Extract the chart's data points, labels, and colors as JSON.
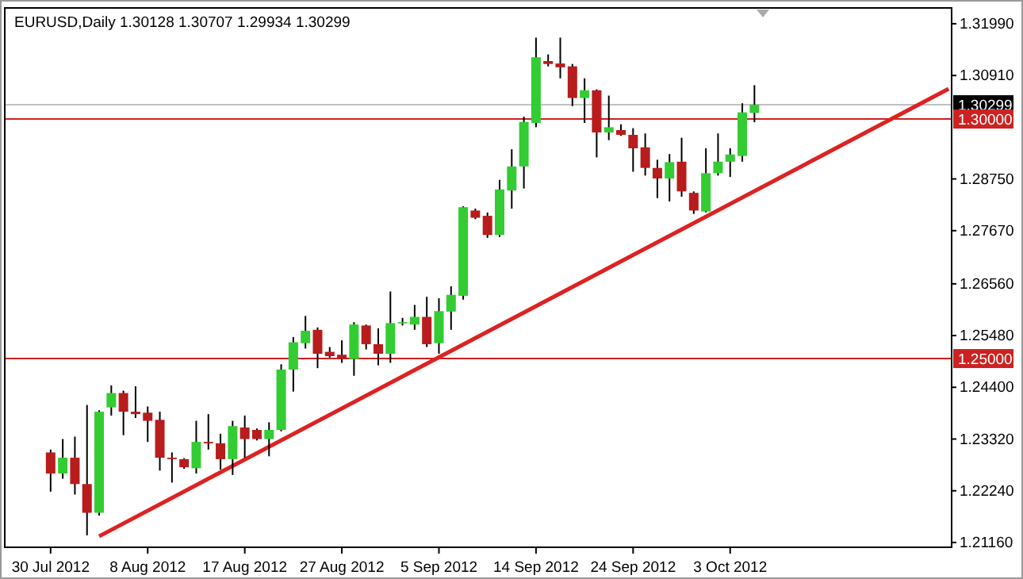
{
  "chart_data": {
    "type": "candlestick",
    "title": "EURUSD,Daily  1.30128 1.30707 1.29934 1.30299",
    "categories": [
      "30 Jul 2012",
      null,
      null,
      null,
      null,
      null,
      null,
      null,
      "8 Aug 2012",
      null,
      null,
      null,
      null,
      null,
      null,
      null,
      "17 Aug 2012",
      null,
      null,
      null,
      null,
      null,
      null,
      null,
      "27 Aug 2012",
      null,
      null,
      null,
      null,
      null,
      null,
      null,
      "5 Sep 2012",
      null,
      null,
      null,
      null,
      null,
      null,
      null,
      "14 Sep 2012",
      null,
      null,
      null,
      null,
      null,
      null,
      null,
      "24 Sep 2012",
      null,
      null,
      null,
      null,
      null,
      null,
      null,
      "3 Oct 2012",
      null,
      null,
      null,
      null,
      null,
      null,
      null,
      null,
      null,
      null,
      null,
      null,
      null,
      null,
      null,
      null,
      null,
      null
    ],
    "ohlc": [
      [
        1.2304,
        1.231,
        1.2222,
        1.226
      ],
      [
        1.226,
        1.2332,
        1.2249,
        1.2293
      ],
      [
        1.2293,
        1.2337,
        1.2216,
        1.2238
      ],
      [
        1.2238,
        1.2403,
        1.2131,
        1.2178
      ],
      [
        1.2178,
        1.2392,
        1.2172,
        1.2389
      ],
      [
        1.2398,
        1.2444,
        1.2381,
        1.2428
      ],
      [
        1.2428,
        1.2433,
        1.234,
        1.2389
      ],
      [
        1.2389,
        1.2442,
        1.2376,
        1.2384
      ],
      [
        1.2387,
        1.24,
        1.2326,
        1.237
      ],
      [
        1.2372,
        1.2389,
        1.2266,
        1.2293
      ],
      [
        1.2293,
        1.2304,
        1.2241,
        1.229
      ],
      [
        1.229,
        1.2292,
        1.227,
        1.2273
      ],
      [
        1.2271,
        1.237,
        1.226,
        1.2326
      ],
      [
        1.2326,
        1.2384,
        1.231,
        1.2323
      ],
      [
        1.2323,
        1.2343,
        1.2268,
        1.229
      ],
      [
        1.229,
        1.237,
        1.2257,
        1.2359
      ],
      [
        1.2356,
        1.2381,
        1.2293,
        1.2332
      ],
      [
        1.2351,
        1.2354,
        1.2329,
        1.2332
      ],
      [
        1.2332,
        1.2367,
        1.2296,
        1.2351
      ],
      [
        1.2351,
        1.2488,
        1.2348,
        1.2477
      ],
      [
        1.2477,
        1.2545,
        1.2431,
        1.2534
      ],
      [
        1.2532,
        1.2589,
        1.2521,
        1.2558
      ],
      [
        1.256,
        1.2565,
        1.248,
        1.251
      ],
      [
        1.2514,
        1.2524,
        1.2502,
        1.2505
      ],
      [
        1.2508,
        1.2538,
        1.2491,
        1.2499
      ],
      [
        1.2499,
        1.2576,
        1.2464,
        1.2571
      ],
      [
        1.2569,
        1.2571,
        1.2519,
        1.253
      ],
      [
        1.253,
        1.2563,
        1.2486,
        1.251
      ],
      [
        1.251,
        1.264,
        1.2491,
        1.2574
      ],
      [
        1.2574,
        1.2585,
        1.2569,
        1.2576
      ],
      [
        1.2571,
        1.2612,
        1.256,
        1.2587
      ],
      [
        1.2587,
        1.2629,
        1.2524,
        1.253
      ],
      [
        1.2532,
        1.2626,
        1.251,
        1.2599
      ],
      [
        1.2598,
        1.2651,
        1.256,
        1.2633
      ],
      [
        1.2631,
        1.2818,
        1.2623,
        1.2816
      ],
      [
        1.2809,
        1.2813,
        1.2791,
        1.2794
      ],
      [
        1.2798,
        1.2805,
        1.2752,
        1.2758
      ],
      [
        1.2758,
        1.2873,
        1.2754,
        1.2853
      ],
      [
        1.2851,
        1.2937,
        1.2813,
        1.2901
      ],
      [
        1.2901,
        1.3005,
        1.2855,
        1.2994
      ],
      [
        1.2992,
        1.317,
        1.2983,
        1.3129
      ],
      [
        1.3121,
        1.3135,
        1.311,
        1.3115
      ],
      [
        1.3116,
        1.317,
        1.3085,
        1.3108
      ],
      [
        1.311,
        1.3115,
        1.3027,
        1.3044
      ],
      [
        1.3044,
        1.3085,
        1.2992,
        1.306
      ],
      [
        1.306,
        1.3062,
        1.292,
        1.2972
      ],
      [
        1.2972,
        1.3049,
        1.2956,
        1.2983
      ],
      [
        1.2977,
        1.2989,
        1.2965,
        1.2967
      ],
      [
        1.2967,
        1.2981,
        1.289,
        1.2939
      ],
      [
        1.2941,
        1.297,
        1.2882,
        1.2898
      ],
      [
        1.2898,
        1.2915,
        1.2835,
        1.2876
      ],
      [
        1.2876,
        1.2927,
        1.2828,
        1.291
      ],
      [
        1.2911,
        1.2961,
        1.2838,
        1.2849
      ],
      [
        1.2846,
        1.2849,
        1.2802,
        1.2809
      ],
      [
        1.2807,
        1.2939,
        1.2805,
        1.2887
      ],
      [
        1.2887,
        1.297,
        1.2882,
        1.2911
      ],
      [
        1.2911,
        1.2939,
        1.2879,
        1.2926
      ],
      [
        1.2923,
        1.3033,
        1.2911,
        1.3014
      ],
      [
        1.30128,
        1.30707,
        1.29934,
        1.30299
      ],
      null,
      null,
      null,
      null,
      null,
      null,
      null,
      null,
      null,
      null,
      null,
      null,
      null,
      null,
      null,
      null
    ],
    "colors": [
      "#b81c1c",
      "#33cc33",
      "#b81c1c",
      "#b81c1c",
      "#33cc33",
      "#33cc33",
      "#b81c1c",
      "#b81c1c",
      "#b81c1c",
      "#b81c1c",
      "#b81c1c",
      "#b81c1c",
      "#33cc33",
      "#b81c1c",
      "#b81c1c",
      "#33cc33",
      "#b81c1c",
      "#b81c1c",
      "#33cc33",
      "#33cc33",
      "#33cc33",
      "#33cc33",
      "#b81c1c",
      "#b81c1c",
      "#b81c1c",
      "#33cc33",
      "#b81c1c",
      "#b81c1c",
      "#33cc33",
      "#33cc33",
      "#33cc33",
      "#b81c1c",
      "#33cc33",
      "#33cc33",
      "#33cc33",
      "#b81c1c",
      "#b81c1c",
      "#33cc33",
      "#33cc33",
      "#33cc33",
      "#33cc33",
      "#b81c1c",
      "#b81c1c",
      "#b81c1c",
      "#33cc33",
      "#b81c1c",
      "#33cc33",
      "#b81c1c",
      "#b81c1c",
      "#b81c1c",
      "#b81c1c",
      "#33cc33",
      "#b81c1c",
      "#b81c1c",
      "#33cc33",
      "#33cc33",
      "#33cc33",
      "#33cc33",
      "#33cc33",
      null,
      null,
      null,
      null,
      null,
      null,
      null,
      null,
      null,
      null,
      null,
      null,
      null,
      null,
      null,
      null
    ],
    "series": [
      {
        "type": "line",
        "values": [
          null,
          null,
          null,
          null,
          1.2129,
          null,
          null,
          null,
          null,
          null,
          null,
          null,
          null,
          null,
          null,
          null,
          null,
          null,
          null,
          null,
          null,
          null,
          null,
          null,
          null,
          null,
          null,
          null,
          null,
          null,
          null,
          null,
          null,
          null,
          null,
          null,
          null,
          null,
          null,
          null,
          null,
          null,
          null,
          null,
          null,
          null,
          null,
          null,
          null,
          null,
          null,
          null,
          null,
          null,
          null,
          null,
          null,
          null,
          null,
          null,
          null,
          null,
          null,
          null,
          null,
          null,
          null,
          null,
          null,
          null,
          null,
          null,
          null,
          null,
          1.3063
        ],
        "color": "#dd2222"
      }
    ],
    "ylim": [
      1.2106,
      1.3232
    ],
    "yticks": [
      {
        "value": 1.3199,
        "label": "1.31990"
      },
      {
        "value": 1.3091,
        "label": "1.30910"
      },
      {
        "value": 1.2875,
        "label": "1.28750"
      },
      {
        "value": 1.2767,
        "label": "1.27670"
      },
      {
        "value": 1.2656,
        "label": "1.26560"
      },
      {
        "value": 1.2548,
        "label": "1.25480"
      },
      {
        "value": 1.244,
        "label": "1.24400"
      },
      {
        "value": 1.2332,
        "label": "1.23320"
      },
      {
        "value": 1.2224,
        "label": "1.22240"
      },
      {
        "value": 1.2116,
        "label": "1.21160"
      }
    ],
    "ref_lines": [
      {
        "axis": "y",
        "value": 1.30299,
        "label": "1.30299",
        "color": "#c0c0c0"
      },
      {
        "axis": "y",
        "value": 1.3,
        "label": "1.30000",
        "color": "#cc2222"
      },
      {
        "axis": "y",
        "value": 1.25,
        "label": "1.25000",
        "color": "#cc2222"
      }
    ],
    "grid": false,
    "line_style": "solid",
    "marker": "none"
  }
}
